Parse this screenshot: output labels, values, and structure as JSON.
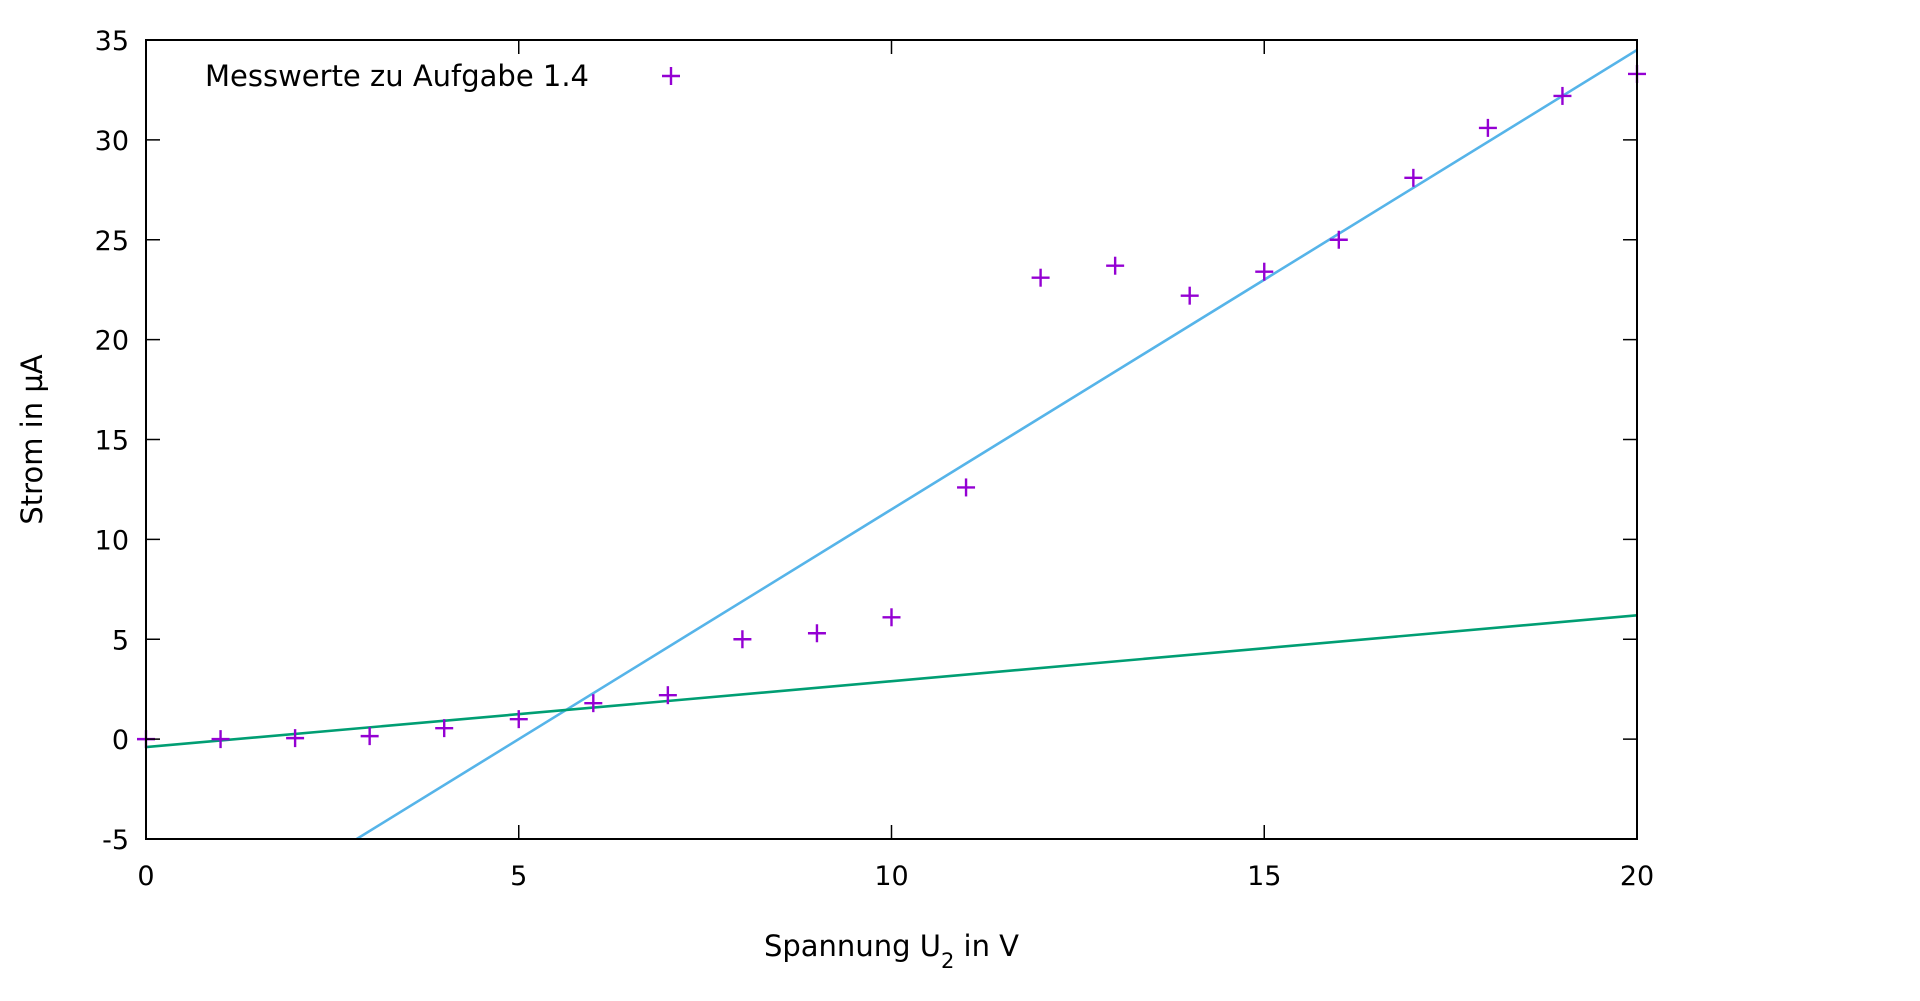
{
  "chart_data": {
    "type": "scatter",
    "title": "",
    "xlabel": {
      "main": "Spannung U",
      "sub": "2",
      "tail": " in V"
    },
    "ylabel": "Strom in µA",
    "xlim": [
      0,
      20
    ],
    "ylim": [
      -5,
      35
    ],
    "x_ticks": [
      0,
      5,
      10,
      15,
      20
    ],
    "y_ticks": [
      -5,
      0,
      5,
      10,
      15,
      20,
      25,
      30,
      35
    ],
    "grid": false,
    "legend_position": "top-left",
    "series": [
      {
        "name": "Messwerte zu Aufgabe 1.4",
        "kind": "points",
        "marker": "plus",
        "color": "#9400d3",
        "points": [
          [
            0,
            0.0
          ],
          [
            1,
            0.0
          ],
          [
            2,
            0.05
          ],
          [
            3,
            0.15
          ],
          [
            4,
            0.55
          ],
          [
            5,
            1.0
          ],
          [
            6,
            1.8
          ],
          [
            7,
            2.2
          ],
          [
            8,
            5.0
          ],
          [
            9,
            5.3
          ],
          [
            10,
            6.1
          ],
          [
            11,
            12.6
          ],
          [
            12,
            23.1
          ],
          [
            13,
            23.7
          ],
          [
            14,
            22.2
          ],
          [
            15,
            23.4
          ],
          [
            16,
            25.0
          ],
          [
            17,
            28.1
          ],
          [
            18,
            30.6
          ],
          [
            19,
            32.2
          ],
          [
            20,
            33.3
          ]
        ]
      },
      {
        "kind": "line",
        "color": "#56b4e9",
        "slope": 2.3,
        "intercept": -11.5
      },
      {
        "kind": "line",
        "color": "#009e73",
        "slope": 0.33,
        "intercept": -0.4
      }
    ]
  }
}
